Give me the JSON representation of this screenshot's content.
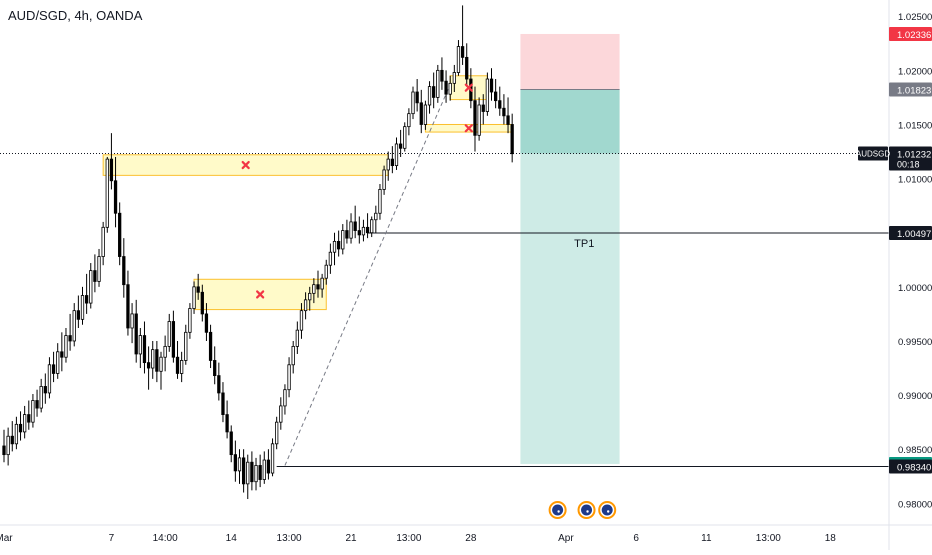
{
  "header": {
    "title": "AUD/SGD, 4h, OANDA"
  },
  "chart_data": {
    "type": "candlestick",
    "symbol": "AUDSGD",
    "timeframe": "4h",
    "broker": "OANDA",
    "ylim": [
      0.978,
      1.0265
    ],
    "y_ticks": [
      0.98,
      0.985,
      0.99,
      0.995,
      1.0,
      1.005,
      1.01,
      1.015,
      1.02,
      1.025
    ],
    "y_tick_labels": [
      "0.98000",
      "0.98500",
      "0.99000",
      "0.99500",
      "1.00000",
      "1.00500",
      "1.01000",
      "1.01500",
      "1.02000",
      "1.02500"
    ],
    "x_ticks": [
      {
        "label": "Mar",
        "index": 0
      },
      {
        "label": "7",
        "index": 26
      },
      {
        "label": "14:00",
        "index": 39
      },
      {
        "label": "14",
        "index": 55
      },
      {
        "label": "13:00",
        "index": 69
      },
      {
        "label": "21",
        "index": 84
      },
      {
        "label": "13:00",
        "index": 98
      },
      {
        "label": "28",
        "index": 113
      },
      {
        "label": "Apr",
        "index": 136
      },
      {
        "label": "6",
        "index": 153
      },
      {
        "label": "11",
        "index": 170
      },
      {
        "label": "13:00",
        "index": 185
      },
      {
        "label": "18",
        "index": 200
      }
    ],
    "index_range": [
      0,
      213
    ],
    "price_labels": [
      {
        "value": "1.02336",
        "price": 1.02336,
        "color": "#f23645"
      },
      {
        "value": "1.01823",
        "price": 1.01823,
        "color": "#787b86"
      },
      {
        "value": "1.01232",
        "sub": "00:18",
        "price": 1.01232,
        "color": "#131722",
        "badge": "AUDSGD"
      },
      {
        "value": "1.00497",
        "price": 1.00497,
        "color": "#131722"
      },
      {
        "value": "0.98364",
        "price": 0.98364,
        "color": "#089981"
      },
      {
        "value": "0.98340",
        "price": 0.9834,
        "color": "#131722"
      }
    ],
    "tp_label": "TP1",
    "tp_price": 1.00497,
    "support_price": 0.9834,
    "current_price": 1.01232,
    "position": {
      "type": "short",
      "entry": 1.01823,
      "stop": 1.02336,
      "target": 0.98364,
      "start_index": 125,
      "end_index": 149,
      "profit_color": "#089981",
      "loss_color": "#f23645"
    },
    "zones": [
      {
        "x0": 24,
        "x1": 93,
        "top": 1.0122,
        "bottom": 1.0103
      },
      {
        "x0": 46,
        "x1": 78,
        "top": 1.0007,
        "bottom": 0.9979
      },
      {
        "x0": 108,
        "x1": 117,
        "top": 1.0195,
        "bottom": 1.0173
      },
      {
        "x0": 102,
        "x1": 123,
        "top": 1.015,
        "bottom": 1.0143
      }
    ],
    "trendline": {
      "from": {
        "index": 68,
        "price": 0.9835
      },
      "to": {
        "index": 108,
        "price": 1.0187
      }
    },
    "horizontal_lines": [
      {
        "from_index": 88,
        "price": 1.00497
      },
      {
        "from_index": 66,
        "price": 0.9834
      }
    ],
    "event_icons": [
      {
        "index": 134
      },
      {
        "index": 141
      },
      {
        "index": 146
      }
    ],
    "candles": [
      [
        0.9853,
        0.9868,
        0.9838,
        0.9845
      ],
      [
        0.9845,
        0.987,
        0.9835,
        0.9862
      ],
      [
        0.9862,
        0.9876,
        0.9848,
        0.9855
      ],
      [
        0.9855,
        0.988,
        0.985,
        0.9873
      ],
      [
        0.9873,
        0.9885,
        0.9858,
        0.9866
      ],
      [
        0.9866,
        0.989,
        0.986,
        0.9882
      ],
      [
        0.9882,
        0.9895,
        0.9868,
        0.9875
      ],
      [
        0.9875,
        0.9901,
        0.987,
        0.9895
      ],
      [
        0.9895,
        0.9905,
        0.988,
        0.9888
      ],
      [
        0.9888,
        0.9915,
        0.9884,
        0.9908
      ],
      [
        0.9908,
        0.992,
        0.9892,
        0.9902
      ],
      [
        0.9902,
        0.9935,
        0.9897,
        0.9928
      ],
      [
        0.9928,
        0.994,
        0.9912,
        0.992
      ],
      [
        0.992,
        0.9948,
        0.9915,
        0.994
      ],
      [
        0.994,
        0.9958,
        0.9922,
        0.9935
      ],
      [
        0.9935,
        0.9962,
        0.993,
        0.9955
      ],
      [
        0.9955,
        0.9975,
        0.9941,
        0.995
      ],
      [
        0.995,
        0.9985,
        0.9945,
        0.9978
      ],
      [
        0.9978,
        0.9992,
        0.9962,
        0.997
      ],
      [
        0.997,
        1.0,
        0.9965,
        0.9992
      ],
      [
        0.9992,
        1.0012,
        0.9975,
        0.9985
      ],
      [
        0.9985,
        1.0022,
        0.998,
        1.0015
      ],
      [
        1.0015,
        1.003,
        0.9995,
        1.0005
      ],
      [
        1.0005,
        1.0035,
        1.0,
        1.0028
      ],
      [
        1.0028,
        1.006,
        1.002,
        1.0055
      ],
      [
        1.0055,
        1.012,
        1.005,
        1.0118
      ],
      [
        1.0118,
        1.0142,
        1.009,
        1.0098
      ],
      [
        1.0098,
        1.012,
        1.0055,
        1.0068
      ],
      [
        1.0068,
        1.0078,
        1.002,
        1.0028
      ],
      [
        1.0028,
        1.0045,
        0.999,
        1.0002
      ],
      [
        1.0002,
        1.0015,
        0.9955,
        0.9962
      ],
      [
        0.9962,
        0.9985,
        0.9948,
        0.9975
      ],
      [
        0.9975,
        0.9988,
        0.993,
        0.9938
      ],
      [
        0.9938,
        0.9962,
        0.9925,
        0.9955
      ],
      [
        0.9955,
        0.9968,
        0.992,
        0.993
      ],
      [
        0.993,
        0.9945,
        0.9905,
        0.9925
      ],
      [
        0.9925,
        0.995,
        0.9915,
        0.9942
      ],
      [
        0.9942,
        0.995,
        0.9912,
        0.9922
      ],
      [
        0.9922,
        0.994,
        0.9905,
        0.9935
      ],
      [
        0.9935,
        0.9955,
        0.9922,
        0.9945
      ],
      [
        0.9945,
        0.9975,
        0.994,
        0.9968
      ],
      [
        0.9968,
        0.9978,
        0.993,
        0.9935
      ],
      [
        0.9935,
        0.995,
        0.9915,
        0.992
      ],
      [
        0.992,
        0.994,
        0.9912,
        0.9932
      ],
      [
        0.9932,
        0.9965,
        0.9928,
        0.9958
      ],
      [
        0.9958,
        0.9985,
        0.9952,
        0.998
      ],
      [
        0.998,
        1.0005,
        0.9975,
        1.0
      ],
      [
        1.0,
        1.0012,
        0.9988,
        0.9995
      ],
      [
        0.9995,
        1.0002,
        0.9968,
        0.9975
      ],
      [
        0.9975,
        0.9985,
        0.995,
        0.9958
      ],
      [
        0.9958,
        0.9965,
        0.9925,
        0.9932
      ],
      [
        0.9932,
        0.9945,
        0.991,
        0.9918
      ],
      [
        0.9918,
        0.993,
        0.9895,
        0.9902
      ],
      [
        0.9902,
        0.9912,
        0.9875,
        0.9882
      ],
      [
        0.9882,
        0.9895,
        0.986,
        0.9866
      ],
      [
        0.9866,
        0.9872,
        0.9838,
        0.9845
      ],
      [
        0.9845,
        0.9858,
        0.982,
        0.983
      ],
      [
        0.983,
        0.985,
        0.9818,
        0.9842
      ],
      [
        0.9842,
        0.985,
        0.981,
        0.9818
      ],
      [
        0.9818,
        0.9845,
        0.9804,
        0.9838
      ],
      [
        0.9838,
        0.9848,
        0.9812,
        0.982
      ],
      [
        0.982,
        0.9842,
        0.9812,
        0.9835
      ],
      [
        0.9835,
        0.9845,
        0.9815,
        0.9822
      ],
      [
        0.9822,
        0.9848,
        0.9818,
        0.984
      ],
      [
        0.984,
        0.985,
        0.9822,
        0.9828
      ],
      [
        0.9828,
        0.986,
        0.9825,
        0.9855
      ],
      [
        0.9855,
        0.988,
        0.985,
        0.9875
      ],
      [
        0.9875,
        0.9898,
        0.9868,
        0.989
      ],
      [
        0.989,
        0.991,
        0.9882,
        0.9905
      ],
      [
        0.9905,
        0.9935,
        0.9898,
        0.9928
      ],
      [
        0.9928,
        0.995,
        0.992,
        0.9945
      ],
      [
        0.9945,
        0.9968,
        0.9938,
        0.996
      ],
      [
        0.996,
        0.9985,
        0.9952,
        0.9978
      ],
      [
        0.9978,
        0.9995,
        0.997,
        0.9988
      ],
      [
        0.9988,
        1.0,
        0.9978,
        0.9994
      ],
      [
        0.9994,
        1.0008,
        0.9985,
        1.0002
      ],
      [
        1.0002,
        1.0015,
        0.999,
        0.9998
      ],
      [
        0.9998,
        1.0012,
        0.999,
        1.0008
      ],
      [
        1.0008,
        1.0025,
        1.0002,
        1.002
      ],
      [
        1.002,
        1.004,
        1.0012,
        1.0032
      ],
      [
        1.0032,
        1.005,
        1.002,
        1.0042
      ],
      [
        1.0042,
        1.0052,
        1.0028,
        1.0035
      ],
      [
        1.0035,
        1.0058,
        1.003,
        1.0052
      ],
      [
        1.0052,
        1.0062,
        1.004,
        1.0045
      ],
      [
        1.0045,
        1.0068,
        1.004,
        1.006
      ],
      [
        1.006,
        1.0075,
        1.0045,
        1.0052
      ],
      [
        1.0052,
        1.0065,
        1.004,
        1.0048
      ],
      [
        1.0048,
        1.0062,
        1.0042,
        1.0055
      ],
      [
        1.0055,
        1.0068,
        1.0045,
        1.005
      ],
      [
        1.005,
        1.0065,
        1.0046,
        1.0062
      ],
      [
        1.0062,
        1.0075,
        1.005,
        1.0068
      ],
      [
        1.0068,
        1.0095,
        1.0062,
        1.009
      ],
      [
        1.009,
        1.0112,
        1.0085,
        1.0108
      ],
      [
        1.0108,
        1.0125,
        1.0098,
        1.0118
      ],
      [
        1.0118,
        1.013,
        1.0105,
        1.0112
      ],
      [
        1.0112,
        1.0138,
        1.0108,
        1.0132
      ],
      [
        1.0132,
        1.0145,
        1.012,
        1.0128
      ],
      [
        1.0128,
        1.0152,
        1.0125,
        1.0148
      ],
      [
        1.0148,
        1.0165,
        1.014,
        1.016
      ],
      [
        1.016,
        1.0185,
        1.0155,
        1.018
      ],
      [
        1.018,
        1.0192,
        1.0162,
        1.017
      ],
      [
        1.017,
        1.0182,
        1.0142,
        1.015
      ],
      [
        1.015,
        1.0172,
        1.0145,
        1.0168
      ],
      [
        1.0168,
        1.019,
        1.016,
        1.0185
      ],
      [
        1.0185,
        1.0198,
        1.0165,
        1.0175
      ],
      [
        1.0175,
        1.0205,
        1.017,
        1.02
      ],
      [
        1.02,
        1.0212,
        1.0182,
        1.019
      ],
      [
        1.019,
        1.02,
        1.017,
        1.0178
      ],
      [
        1.0178,
        1.0195,
        1.0172,
        1.0188
      ],
      [
        1.0188,
        1.0205,
        1.018,
        1.0198
      ],
      [
        1.0198,
        1.0228,
        1.0195,
        1.0222
      ],
      [
        1.0222,
        1.026,
        1.0205,
        1.0212
      ],
      [
        1.0212,
        1.0225,
        1.0185,
        1.0192
      ],
      [
        1.0192,
        1.0202,
        1.0165,
        1.0172
      ],
      [
        1.0172,
        1.0185,
        1.0125,
        1.014
      ],
      [
        1.014,
        1.0175,
        1.0135,
        1.0168
      ],
      [
        1.0168,
        1.0178,
        1.015,
        1.0162
      ],
      [
        1.0162,
        1.0198,
        1.0158,
        1.0192
      ],
      [
        1.0192,
        1.0202,
        1.0172,
        1.018
      ],
      [
        1.018,
        1.0192,
        1.0165,
        1.0172
      ],
      [
        1.0172,
        1.0185,
        1.0158,
        1.0165
      ],
      [
        1.0165,
        1.0178,
        1.015,
        1.0158
      ],
      [
        1.0158,
        1.0175,
        1.0142,
        1.015
      ],
      [
        1.015,
        1.016,
        1.0115,
        1.0123
      ]
    ]
  }
}
